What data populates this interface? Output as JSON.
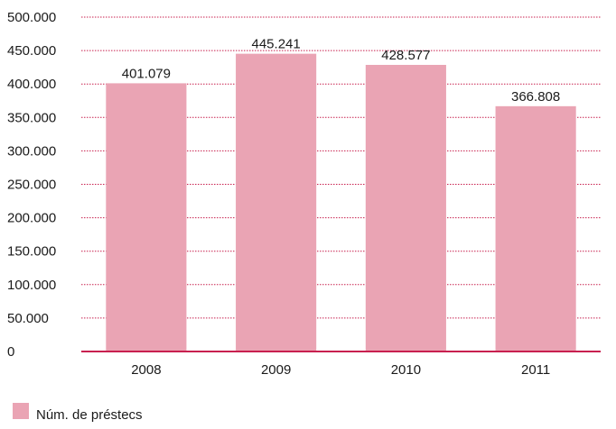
{
  "chart_data": {
    "type": "bar",
    "categories": [
      "2008",
      "2009",
      "2010",
      "2011"
    ],
    "series": [
      {
        "name": "Núm. de préstecs",
        "values": [
          401079,
          445241,
          428577,
          366808
        ],
        "data_labels": [
          "401.079",
          "445.241",
          "428.577",
          "366.808"
        ],
        "color": "#eaa4b4"
      }
    ],
    "ylim": [
      0,
      500000
    ],
    "yticks": [
      0,
      50000,
      100000,
      150000,
      200000,
      250000,
      300000,
      350000,
      400000,
      450000,
      500000
    ],
    "ytick_labels": [
      "0",
      "50.000",
      "100.000",
      "150.000",
      "200.000",
      "250.000",
      "300.000",
      "350.000",
      "400.000",
      "450.000",
      "500.000"
    ],
    "grid": true,
    "grid_color": "#c8204f",
    "axis_color": "#c8204f",
    "legend": {
      "position": "bottom-left",
      "label": "Núm. de préstecs",
      "swatch_color": "#eaa4b4"
    }
  }
}
